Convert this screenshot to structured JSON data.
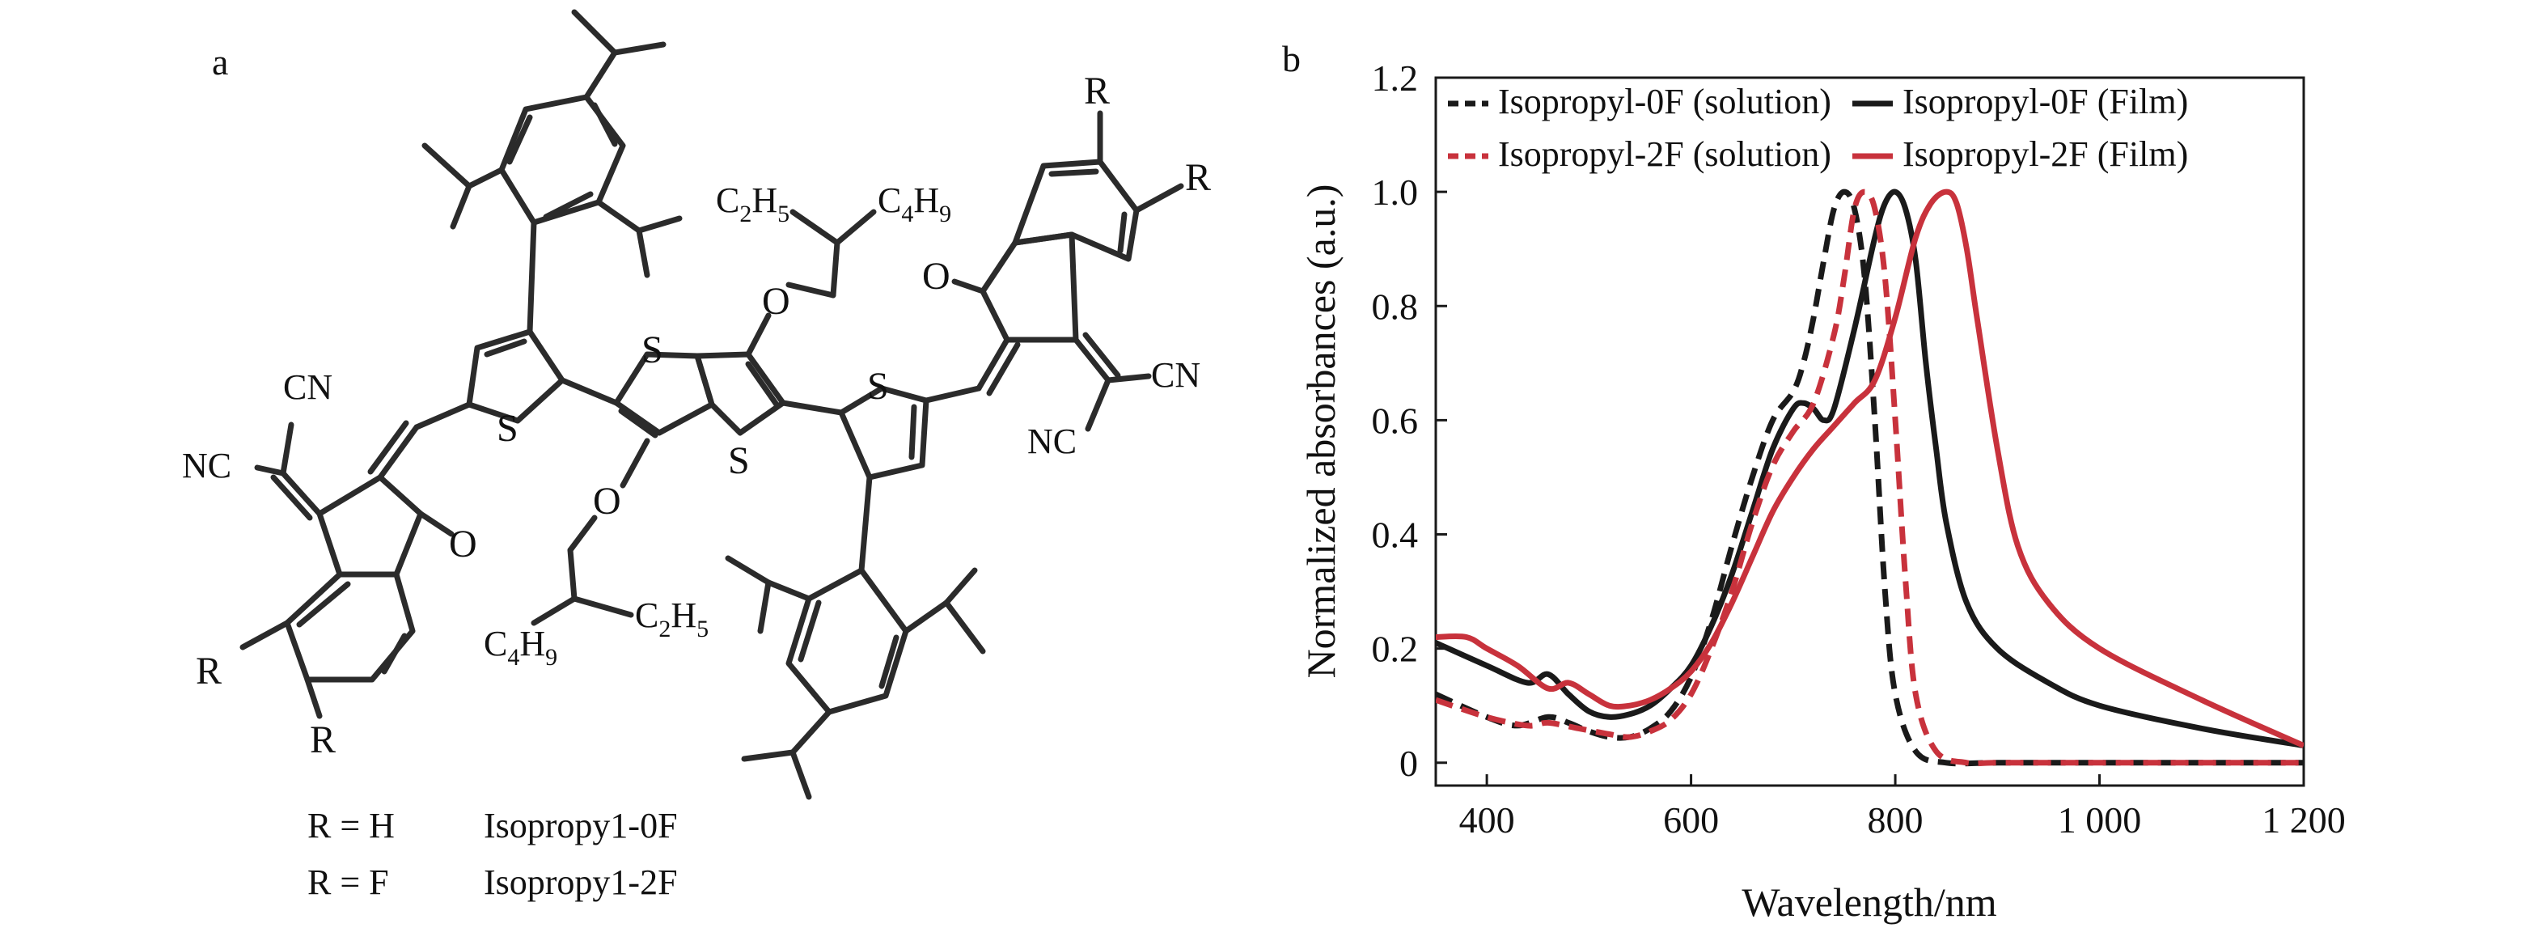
{
  "panels": {
    "a": "a",
    "b": "b"
  },
  "molecule": {
    "atoms": {
      "s_thio_left": "S",
      "s_core_top": "S",
      "s_core_bottom": "S",
      "s_thio_right": "S",
      "o_ether_top": "O",
      "o_ether_bottom": "O",
      "o_keto_left": "O",
      "o_keto_right": "O",
      "cn_left_top": "CN",
      "nc_left": "NC",
      "cn_right": "CN",
      "nc_right": "NC",
      "r_left_1": "R",
      "r_left_2": "R",
      "r_right_1": "R",
      "r_right_2": "R"
    },
    "chains": {
      "top": {
        "left": {
          "main": "C",
          "sub": "2",
          "tail": "H",
          "tail_sub": "5"
        },
        "right": {
          "main": "C",
          "sub": "4",
          "tail": "H",
          "tail_sub": "9"
        }
      },
      "bottom": {
        "left": {
          "main": "C",
          "sub": "4",
          "tail": "H",
          "tail_sub": "9"
        },
        "right": {
          "main": "C",
          "sub": "2",
          "tail": "H",
          "tail_sub": "5"
        }
      }
    },
    "legend": [
      {
        "r": "R = H",
        "name": "Isopropy1-0F"
      },
      {
        "r": "R = F",
        "name": "Isopropy1-2F"
      }
    ]
  },
  "chart_data": {
    "type": "line",
    "xlabel": "Wavelength/nm",
    "ylabel": "Normalized absorbances (a.u.)",
    "xlim": [
      350,
      1200
    ],
    "ylim": [
      -0.04,
      1.2
    ],
    "xticks": [
      400,
      600,
      800,
      1000,
      1200
    ],
    "xtick_labels": [
      "400",
      "600",
      "800",
      "1 000",
      "1 200"
    ],
    "yticks": [
      0,
      0.2,
      0.4,
      0.6,
      0.8,
      1.0,
      1.2
    ],
    "ytick_labels": [
      "0",
      "0.2",
      "0.4",
      "0.6",
      "0.8",
      "1.0",
      "1.2"
    ],
    "grid": false,
    "legend_position": "top",
    "colors": {
      "black": "#1a1a1a",
      "red": "#c8323c"
    },
    "series": [
      {
        "name": "Isopropyl-0F (solution)",
        "color": "#1a1a1a",
        "dash": true,
        "x": [
          350,
          400,
          430,
          460,
          480,
          500,
          520,
          540,
          560,
          580,
          600,
          620,
          640,
          660,
          680,
          700,
          710,
          720,
          730,
          740,
          750,
          760,
          770,
          780,
          790,
          800,
          820,
          850,
          900,
          1000,
          1200
        ],
        "y": [
          0.12,
          0.08,
          0.065,
          0.08,
          0.07,
          0.055,
          0.045,
          0.045,
          0.06,
          0.09,
          0.15,
          0.25,
          0.38,
          0.5,
          0.6,
          0.65,
          0.7,
          0.78,
          0.88,
          0.97,
          1.0,
          0.97,
          0.85,
          0.6,
          0.3,
          0.12,
          0.02,
          0.0,
          0.0,
          0.0,
          0.0
        ]
      },
      {
        "name": "Isopropyl-0F (Film)",
        "color": "#1a1a1a",
        "dash": false,
        "x": [
          350,
          400,
          440,
          460,
          480,
          500,
          520,
          540,
          560,
          580,
          600,
          620,
          640,
          660,
          680,
          700,
          710,
          720,
          730,
          740,
          760,
          780,
          790,
          800,
          810,
          820,
          830,
          840,
          850,
          870,
          900,
          950,
          1000,
          1100,
          1200
        ],
        "y": [
          0.21,
          0.17,
          0.14,
          0.155,
          0.12,
          0.09,
          0.08,
          0.085,
          0.1,
          0.13,
          0.17,
          0.24,
          0.33,
          0.44,
          0.55,
          0.62,
          0.63,
          0.62,
          0.6,
          0.62,
          0.76,
          0.92,
          0.98,
          1.0,
          0.97,
          0.88,
          0.7,
          0.55,
          0.42,
          0.28,
          0.2,
          0.14,
          0.1,
          0.06,
          0.03
        ]
      },
      {
        "name": "Isopropyl-2F (solution)",
        "color": "#c8323c",
        "dash": true,
        "x": [
          350,
          400,
          440,
          460,
          490,
          520,
          540,
          560,
          580,
          600,
          620,
          640,
          660,
          680,
          700,
          720,
          740,
          750,
          760,
          770,
          780,
          790,
          800,
          810,
          820,
          840,
          870,
          900,
          1000,
          1200
        ],
        "y": [
          0.11,
          0.08,
          0.065,
          0.07,
          0.06,
          0.05,
          0.045,
          0.055,
          0.075,
          0.12,
          0.2,
          0.3,
          0.42,
          0.52,
          0.58,
          0.63,
          0.75,
          0.85,
          0.97,
          1.0,
          0.97,
          0.85,
          0.6,
          0.32,
          0.12,
          0.02,
          0.0,
          0.0,
          0.0,
          0.0
        ]
      },
      {
        "name": "Isopropyl-2F (Film)",
        "color": "#c8323c",
        "dash": false,
        "x": [
          350,
          380,
          400,
          430,
          460,
          480,
          500,
          520,
          540,
          560,
          580,
          600,
          620,
          640,
          660,
          680,
          700,
          720,
          740,
          760,
          780,
          800,
          820,
          835,
          850,
          860,
          870,
          880,
          900,
          920,
          950,
          1000,
          1100,
          1200
        ],
        "y": [
          0.22,
          0.22,
          0.2,
          0.17,
          0.13,
          0.14,
          0.12,
          0.1,
          0.1,
          0.11,
          0.13,
          0.16,
          0.21,
          0.28,
          0.36,
          0.44,
          0.5,
          0.55,
          0.59,
          0.63,
          0.67,
          0.78,
          0.92,
          0.98,
          1.0,
          0.98,
          0.9,
          0.78,
          0.55,
          0.38,
          0.28,
          0.2,
          0.11,
          0.03
        ]
      }
    ]
  }
}
